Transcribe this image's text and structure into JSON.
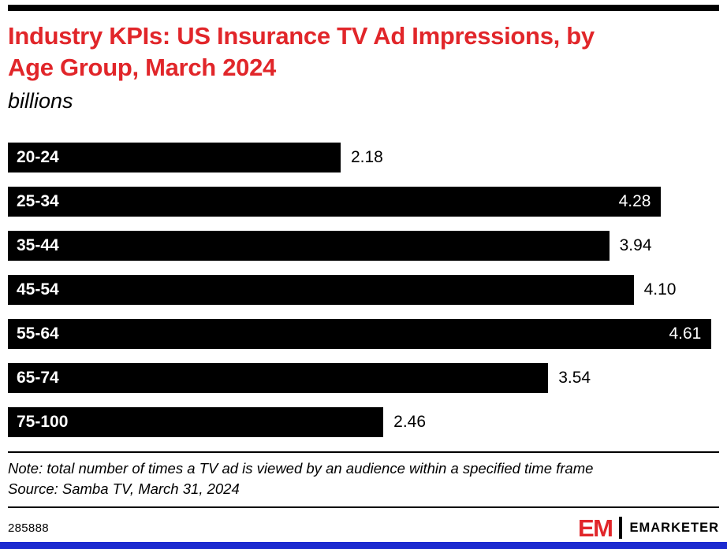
{
  "header": {
    "title_lines": {
      "0": "Industry KPIs: US Insurance TV Ad Impressions, by",
      "1": "Age Group, March 2024"
    },
    "subtitle": "billions"
  },
  "chart_data": {
    "type": "bar",
    "orientation": "horizontal",
    "title": "Industry KPIs: US Insurance TV Ad Impressions, by Age Group, March 2024",
    "unit": "billions",
    "categories": [
      "20-24",
      "25-34",
      "35-44",
      "45-54",
      "55-64",
      "65-74",
      "75-100"
    ],
    "values": [
      2.18,
      4.28,
      3.94,
      4.1,
      4.61,
      3.54,
      2.46
    ],
    "value_labels": [
      "2.18",
      "4.28",
      "3.94",
      "4.10",
      "4.61",
      "3.54",
      "2.46"
    ],
    "xlim": [
      0,
      4.66
    ],
    "grid": false,
    "legend": "none",
    "bar_color": "#000000",
    "inside_label_color": "#ffffff",
    "outside_label_color": "#000000"
  },
  "footer": {
    "note": "Note: total number of times a TV ad is viewed by an audience within a specified time frame",
    "source": "Source: Samba TV, March 31, 2024",
    "chart_id": "285888",
    "brand": {
      "logo_text": "EM",
      "brand_name": "EMARKETER"
    }
  },
  "colors": {
    "accent_red": "#e1262a",
    "bottom_bar_blue": "#1c2bd0",
    "bar_black": "#000000"
  }
}
